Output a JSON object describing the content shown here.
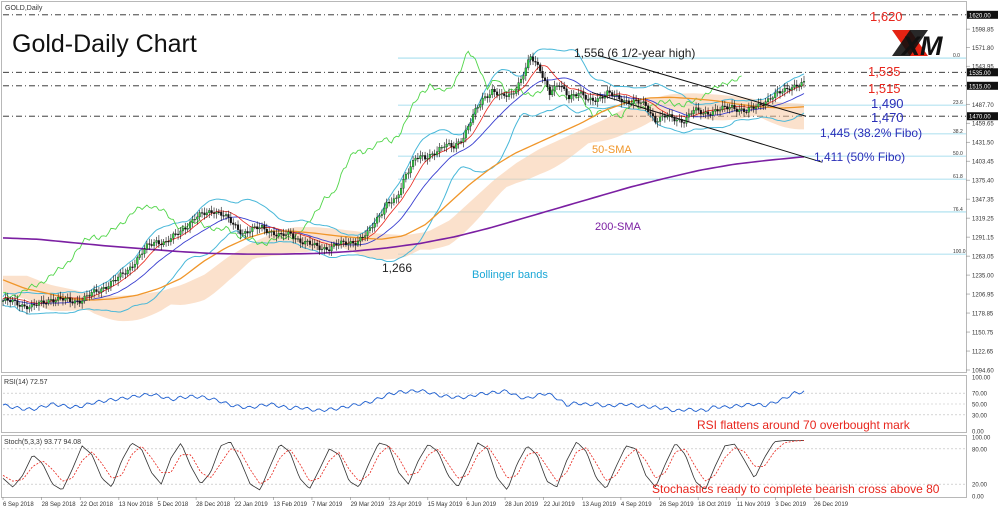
{
  "header": {
    "symbol_label": "GOLD,Daily",
    "title": "Gold-Daily Chart",
    "logo_text": "XM"
  },
  "chart_data": {
    "type": "line",
    "title": "Gold-Daily Chart",
    "price_axis_ticks": [
      "1620.10",
      "1598.85",
      "1571.80",
      "1543.95",
      "1515.00",
      "1487.70",
      "1459.65",
      "1431.50",
      "1403.45",
      "1375.40",
      "1347.35",
      "1319.25",
      "1291.15",
      "1263.05",
      "1235.00",
      "1206.95",
      "1178.85",
      "1150.75",
      "1122.65",
      "1094.60"
    ],
    "price_ylim": [
      1094.6,
      1636
    ],
    "price_markers": [
      {
        "value": 1620,
        "label": "1620.00"
      },
      {
        "value": 1535,
        "label": "1535.00"
      },
      {
        "value": 1515,
        "label": "1515.00"
      },
      {
        "value": 1470,
        "label": "1470.00"
      }
    ],
    "x_tick_labels": [
      "6 Sep 2018",
      "28 Sep 2018",
      "22 Oct 2018",
      "13 Nov 2018",
      "5 Dec 2018",
      "28 Dec 2018",
      "22 Jan 2019",
      "13 Feb 2019",
      "7 Mar 2019",
      "29 Mar 2019",
      "23 Apr 2019",
      "15 May 2019",
      "6 Jun 2019",
      "28 Jun 2019",
      "22 Jul 2019",
      "13 Aug 2019",
      "4 Sep 2019",
      "26 Sep 2019",
      "18 Oct 2019",
      "11 Nov 2019",
      "3 Dec 2019",
      "26 Dec 2019"
    ],
    "close_series": {
      "x_index": [
        0,
        4,
        8,
        12,
        16,
        20,
        24,
        28,
        32,
        36,
        40,
        44,
        48,
        52,
        56,
        60,
        64,
        68,
        72,
        76,
        80,
        84,
        88,
        92,
        96,
        100,
        104,
        108,
        112,
        116,
        120,
        124,
        128,
        132,
        136,
        140,
        144,
        148,
        152,
        156,
        160,
        164,
        168,
        172,
        176,
        180,
        184,
        188,
        192,
        196,
        200,
        204,
        208,
        212,
        216,
        220,
        224,
        228,
        232,
        236,
        240,
        244,
        248,
        252,
        256,
        260,
        264,
        268,
        272,
        276,
        280,
        284,
        288,
        292,
        296,
        300,
        304,
        310,
        316,
        322,
        328,
        334
      ],
      "values": [
        1197,
        1195,
        1191,
        1188,
        1193,
        1200,
        1199,
        1196,
        1198,
        1205,
        1212,
        1222,
        1230,
        1242,
        1260,
        1276,
        1285,
        1284,
        1293,
        1306,
        1320,
        1325,
        1331,
        1324,
        1309,
        1298,
        1302,
        1305,
        1299,
        1292,
        1296,
        1286,
        1280,
        1276,
        1275,
        1280,
        1284,
        1285,
        1296,
        1320,
        1340,
        1345,
        1386,
        1408,
        1407,
        1418,
        1426,
        1424,
        1441,
        1470,
        1495,
        1509,
        1498,
        1502,
        1525,
        1556,
        1540,
        1505,
        1515,
        1500,
        1505,
        1492,
        1497,
        1504,
        1497,
        1493,
        1491,
        1485,
        1465,
        1469,
        1466,
        1464,
        1478,
        1475,
        1477,
        1480,
        1485,
        1476,
        1489,
        1500,
        1514,
        1517
      ]
    },
    "sma50": {
      "values": [
        1228,
        1215,
        1208,
        1200,
        1198,
        1200,
        1205,
        1215,
        1230,
        1255,
        1275,
        1290,
        1300,
        1300,
        1297,
        1293,
        1290,
        1288,
        1293,
        1310,
        1340,
        1370,
        1395,
        1415,
        1430,
        1445,
        1460,
        1478,
        1490,
        1497,
        1498,
        1496,
        1493,
        1488,
        1484,
        1482,
        1484
      ]
    },
    "sma200": {
      "values": [
        1290,
        1288,
        1283,
        1278,
        1274,
        1270,
        1267,
        1266,
        1266,
        1267,
        1270,
        1275,
        1282,
        1292,
        1305,
        1320,
        1335,
        1350,
        1365,
        1378,
        1390,
        1399,
        1405,
        1410
      ]
    },
    "annotations": {
      "level_1620": "1,620",
      "level_1535": "1,535",
      "level_1515": "1,515",
      "level_1490": "1,490",
      "level_1470": "1,470",
      "fibo_382": "1,445 (38.2% Fibo)",
      "fibo_50": "1,411 (50% Fibo)",
      "high": "1,556 (6 1/2-year high)",
      "low": "1,266",
      "sma50_label": "50-SMA",
      "sma200_label": "200-SMA",
      "bollinger_label": "Bollinger bands"
    },
    "fibo_levels": [
      {
        "value": 1556,
        "label": "0.0"
      },
      {
        "value": 1486.4,
        "label": "23.6"
      },
      {
        "value": 1443.9,
        "label": "38.2"
      },
      {
        "value": 1411,
        "label": "50.0"
      },
      {
        "value": 1377,
        "label": "61.8"
      },
      {
        "value": 1328.4,
        "label": "76.4"
      },
      {
        "value": 1266,
        "label": "100.0"
      }
    ],
    "rsi": {
      "header": "RSI(14) 72.57",
      "ticks": [
        "100.00",
        "70.00",
        "50.00",
        "30.00",
        "0.00"
      ],
      "ylim": [
        0,
        100
      ],
      "annotation": "RSI flattens around 70 overbought mark",
      "values": [
        48,
        44,
        41,
        40,
        45,
        50,
        47,
        44,
        46,
        52,
        55,
        58,
        60,
        63,
        66,
        68,
        64,
        58,
        62,
        64,
        63,
        60,
        55,
        48,
        45,
        43,
        47,
        50,
        46,
        42,
        44,
        40,
        38,
        40,
        42,
        46,
        50,
        53,
        60,
        68,
        72,
        73,
        75,
        72,
        66,
        64,
        62,
        63,
        68,
        70,
        72,
        74,
        64,
        60,
        66,
        70,
        61,
        48,
        52,
        49,
        50,
        46,
        48,
        50,
        47,
        45,
        44,
        42,
        37,
        40,
        39,
        38,
        45,
        44,
        46,
        48,
        50,
        47,
        53,
        60,
        70,
        72.57
      ]
    },
    "stochastics": {
      "header": "Stoch(5,3,3) 93.77 94.08",
      "ticks": [
        "100.00",
        "80.00",
        "20.00",
        "0.00"
      ],
      "ylim": [
        0,
        100
      ],
      "annotation": "Stochastics ready to complete bearish cross above 80",
      "k_values": [
        30,
        15,
        35,
        70,
        55,
        20,
        10,
        45,
        85,
        70,
        30,
        15,
        60,
        90,
        80,
        40,
        20,
        65,
        90,
        50,
        20,
        40,
        85,
        92,
        60,
        20,
        10,
        50,
        88,
        75,
        30,
        12,
        45,
        80,
        70,
        25,
        15,
        55,
        90,
        85,
        40,
        20,
        60,
        88,
        75,
        35,
        15,
        50,
        90,
        80,
        30,
        10,
        55,
        85,
        70,
        25,
        15,
        60,
        92,
        75,
        30,
        12,
        50,
        85,
        80,
        35,
        15,
        55,
        90,
        70,
        25,
        10,
        50,
        85,
        88,
        60,
        30,
        65,
        92,
        94,
        93.77,
        94
      ],
      "d_values": [
        35,
        25,
        28,
        50,
        60,
        45,
        25,
        30,
        60,
        75,
        55,
        30,
        35,
        70,
        85,
        65,
        40,
        40,
        70,
        70,
        40,
        30,
        55,
        80,
        75,
        45,
        20,
        30,
        65,
        80,
        55,
        25,
        30,
        60,
        75,
        45,
        25,
        35,
        70,
        85,
        65,
        35,
        40,
        70,
        80,
        55,
        30,
        35,
        70,
        85,
        60,
        30,
        35,
        70,
        75,
        50,
        25,
        40,
        75,
        82,
        55,
        25,
        35,
        65,
        80,
        60,
        30,
        40,
        75,
        80,
        50,
        25,
        35,
        65,
        82,
        75,
        50,
        50,
        75,
        90,
        93,
        94.08
      ]
    }
  }
}
